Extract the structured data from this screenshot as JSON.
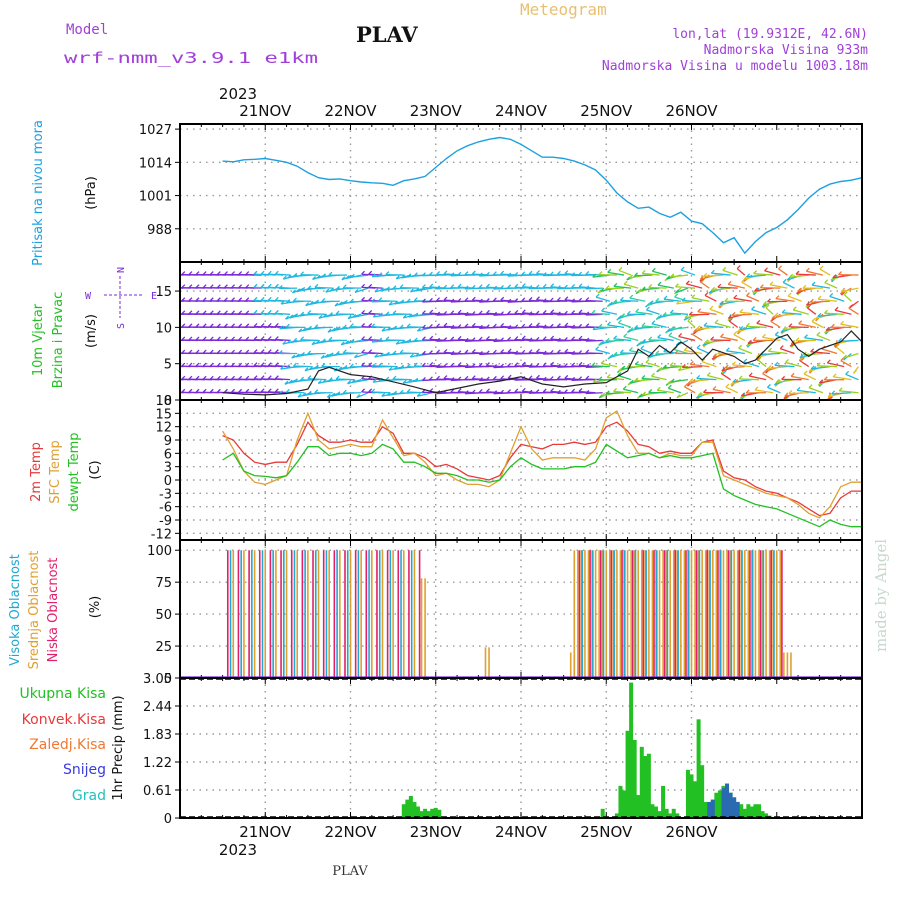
{
  "header": {
    "model_label": "Model",
    "model_name": "wrf-nmm_v3.9.1 e1km",
    "station": "PLAV",
    "meteogram_label": "Meteogram",
    "location_line": "lon,lat (19.9312E, 42.6N)",
    "elevation_line": "Nadmorska Visina 933m",
    "model_elevation_line": "Nadmorska Visina u modelu 1003.18m",
    "year": "2023",
    "footer_station": "PLAV",
    "watermark": "made by Angel"
  },
  "colors": {
    "pressure": "#1ea0e0",
    "temp2m": "#e83a3a",
    "sfc_temp": "#e0a030",
    "dewpt": "#22c022",
    "high_cloud": "#22a8d0",
    "mid_cloud": "#e0a030",
    "low_cloud": "#e0206a",
    "total_precip": "#22c022",
    "conv_precip": "#e83a3a",
    "frozen_precip": "#f07830",
    "snow": "#3a3ae0",
    "hail": "#20c0c0",
    "wind_purple": "#7a2ad8",
    "wind_cyan": "#20b8e0"
  },
  "chart_data": [
    {
      "panel": "pressure",
      "type": "line",
      "ylabel_main": "Pritisak na nivou mora",
      "ylabel_unit": "(hPa)",
      "ylim": [
        975,
        1029
      ],
      "yticks": [
        "1027",
        "1014",
        "1001",
        "988"
      ],
      "ytick_values": [
        1027,
        1014,
        1001,
        988
      ],
      "x_days": [
        "21NOV",
        "22NOV",
        "23NOV",
        "24NOV",
        "25NOV",
        "26NOV"
      ],
      "grid": true,
      "series": [
        {
          "x": [
            0,
            3,
            6,
            9,
            12,
            15,
            18,
            21,
            24,
            27,
            30,
            33,
            36,
            39,
            42,
            45,
            48,
            51,
            54,
            57,
            60,
            63,
            66,
            69,
            72,
            75,
            78,
            81,
            84,
            87,
            90,
            93,
            96,
            99,
            102,
            105,
            108,
            111,
            114,
            117,
            120,
            123,
            126,
            129,
            132,
            135,
            138,
            141,
            144,
            147,
            150,
            153,
            156,
            159,
            162,
            165,
            168,
            171,
            174,
            177,
            180
          ],
          "values": [
            1014.5,
            1014.2,
            1015,
            1015.2,
            1015.5,
            1014.8,
            1014,
            1012.5,
            1010,
            1008,
            1007.3,
            1007.5,
            1006.8,
            1006.3,
            1006,
            1005.8,
            1005,
            1006.8,
            1007.5,
            1008.5,
            1012,
            1015.5,
            1018.5,
            1020.5,
            1022,
            1023,
            1023.7,
            1023,
            1021,
            1018.5,
            1016,
            1016,
            1015.5,
            1014.5,
            1013,
            1011,
            1007,
            1002,
            998.5,
            996,
            996.5,
            994,
            992.5,
            994.5,
            991,
            990,
            986.5,
            982.5,
            984.5,
            978.5,
            983,
            986.5,
            988.5,
            991.5,
            995.5,
            1000,
            1003.5,
            1005.5,
            1006.5,
            1007,
            1008
          ]
        }
      ]
    },
    {
      "panel": "wind",
      "type": "line",
      "ylabel_main": "10m Vjetar",
      "ylabel_sub": "Brzina i Pravac",
      "ylabel_unit": "(m/s)",
      "compass_n": "N",
      "compass_e": "E",
      "compass_w": "W",
      "compass_s": "S",
      "ylim": [
        0,
        19
      ],
      "yticks": [
        "15",
        "10",
        "5",
        "0"
      ],
      "ytick_values": [
        15,
        10,
        5,
        0
      ],
      "grid": true,
      "series": [
        {
          "name": "speed",
          "x": [
            0,
            6,
            12,
            18,
            24,
            27,
            30,
            36,
            42,
            48,
            54,
            60,
            66,
            72,
            78,
            84,
            90,
            96,
            102,
            108,
            114,
            117,
            120,
            123,
            126,
            129,
            132,
            135,
            138,
            141,
            144,
            147,
            150,
            153,
            156,
            159,
            162,
            165,
            168,
            171,
            174,
            177,
            180
          ],
          "values": [
            1,
            0.8,
            0.7,
            0.9,
            1.5,
            4,
            4.5,
            3.5,
            3.2,
            2.5,
            1.8,
            1,
            1.6,
            2.2,
            2.6,
            3.2,
            2.2,
            1.8,
            2.2,
            2.4,
            4,
            7,
            6,
            7.5,
            6.5,
            8,
            7,
            5.5,
            7,
            6.5,
            6,
            5,
            5.5,
            7,
            8.5,
            9,
            7,
            6,
            7,
            7.5,
            8,
            9.5,
            8
          ]
        }
      ]
    },
    {
      "panel": "temperature",
      "type": "line",
      "ylabel_lines": [
        "2m Temp",
        "SFC Temp",
        "dewpt Temp"
      ],
      "ylabel_unit": "(C)",
      "ylim": [
        -13.5,
        18
      ],
      "yticks": [
        "18",
        "15",
        "12",
        "9",
        "6",
        "3",
        "0",
        "-3",
        "-6",
        "-9",
        "-12"
      ],
      "ytick_values": [
        18,
        15,
        12,
        9,
        6,
        3,
        0,
        -3,
        -6,
        -9,
        -12
      ],
      "grid": true,
      "series": [
        {
          "name": "2m Temp",
          "x": [
            0,
            3,
            6,
            9,
            12,
            15,
            18,
            21,
            24,
            27,
            30,
            33,
            36,
            39,
            42,
            45,
            48,
            51,
            54,
            57,
            60,
            63,
            66,
            69,
            72,
            75,
            78,
            81,
            84,
            87,
            90,
            93,
            96,
            99,
            102,
            105,
            108,
            111,
            114,
            117,
            120,
            123,
            126,
            129,
            132,
            135,
            138,
            141,
            144,
            147,
            150,
            153,
            156,
            159,
            162,
            165,
            168,
            171,
            174,
            177,
            180
          ],
          "values": [
            10,
            9,
            6,
            4,
            3.5,
            4,
            4,
            8,
            13,
            10,
            8.5,
            8.5,
            9,
            8.5,
            8.5,
            12,
            10.5,
            6,
            6,
            5,
            3,
            3.5,
            2.5,
            1,
            0.5,
            0,
            1,
            5,
            8,
            7.5,
            7,
            8,
            8,
            8.5,
            8,
            8.5,
            12,
            13,
            11,
            8,
            7.5,
            6,
            6.5,
            6,
            6,
            8.5,
            9,
            2,
            0.5,
            0,
            -1.5,
            -2.5,
            -3,
            -4,
            -5,
            -6.5,
            -8,
            -7.5,
            -4,
            -2.5,
            -2.5
          ]
        },
        {
          "name": "SFC Temp",
          "x": [
            0,
            3,
            6,
            9,
            12,
            15,
            18,
            21,
            24,
            27,
            30,
            33,
            36,
            39,
            42,
            45,
            48,
            51,
            54,
            57,
            60,
            63,
            66,
            69,
            72,
            75,
            78,
            81,
            84,
            87,
            90,
            93,
            96,
            99,
            102,
            105,
            108,
            111,
            114,
            117,
            120,
            123,
            126,
            129,
            132,
            135,
            138,
            141,
            144,
            147,
            150,
            153,
            156,
            159,
            162,
            165,
            168,
            171,
            174,
            177,
            180
          ],
          "values": [
            11,
            7,
            2,
            -0.5,
            -1,
            0,
            1,
            9,
            15,
            9,
            7,
            7.5,
            8,
            7.5,
            7.5,
            13.5,
            9.5,
            5.5,
            6,
            4,
            1,
            1.5,
            0,
            -1,
            -1,
            -1.5,
            0,
            6,
            12,
            7,
            4.5,
            5,
            5,
            5,
            4.5,
            7,
            14,
            15.5,
            10,
            6,
            6,
            5,
            6,
            5.5,
            5.5,
            8.5,
            8.5,
            1,
            0,
            -1,
            -2,
            -3,
            -3.5,
            -4,
            -5.5,
            -7.5,
            -8.5,
            -6,
            -1.5,
            -0.5,
            -0.5
          ]
        },
        {
          "name": "dewpt Temp",
          "x": [
            0,
            3,
            6,
            9,
            12,
            15,
            18,
            21,
            24,
            27,
            30,
            33,
            36,
            39,
            42,
            45,
            48,
            51,
            54,
            57,
            60,
            63,
            66,
            69,
            72,
            75,
            78,
            81,
            84,
            87,
            90,
            93,
            96,
            99,
            102,
            105,
            108,
            111,
            114,
            117,
            120,
            123,
            126,
            129,
            132,
            135,
            138,
            141,
            144,
            147,
            150,
            153,
            156,
            159,
            162,
            165,
            168,
            171,
            174,
            177,
            180
          ],
          "values": [
            4.5,
            6,
            2,
            1,
            0.8,
            0.5,
            1,
            4,
            7.5,
            7.5,
            5.5,
            6,
            6,
            5.5,
            6,
            8,
            7,
            4,
            4,
            3,
            1.5,
            1.5,
            1,
            0,
            0,
            -0.5,
            0,
            3,
            5,
            3.5,
            2.5,
            2.5,
            2.5,
            3,
            3,
            4,
            8,
            6.5,
            5,
            5.5,
            6,
            5,
            5.5,
            5,
            5,
            5.5,
            6,
            -2,
            -3.5,
            -4.5,
            -5.5,
            -6,
            -6.5,
            -7.5,
            -8.5,
            -9.5,
            -10.5,
            -9,
            -10,
            -10.5,
            -10.5
          ]
        }
      ]
    },
    {
      "panel": "cloud",
      "type": "bar",
      "ylabel_lines": [
        "Visoka Oblacnost",
        "Srednja Oblacnost",
        "Niska Oblacnost"
      ],
      "ylabel_unit": "(%)",
      "ylim": [
        0,
        108
      ],
      "yticks": [
        "100",
        "75",
        "50",
        "25",
        "0"
      ],
      "ytick_values": [
        100,
        75,
        50,
        25,
        0
      ],
      "grid": true,
      "segments": [
        {
          "name": "Visoka Oblacnost",
          "from": 1,
          "to": 55,
          "value": 100
        },
        {
          "name": "Srednja Oblacnost",
          "from": 1,
          "to": 55,
          "value": 100
        },
        {
          "name": "Niska Oblacnost",
          "from": 1,
          "to": 55,
          "value": 100
        },
        {
          "name": "Srednja Oblacnost",
          "from": 56,
          "to": 57,
          "value": 78
        },
        {
          "name": "Srednja Oblacnost",
          "from": 99,
          "to": 157,
          "value": 100
        },
        {
          "name": "Visoka Oblacnost",
          "from": 99,
          "to": 157,
          "value": 100
        },
        {
          "name": "Niska Oblacnost",
          "from": 99,
          "to": 157,
          "value": 100
        },
        {
          "name": "Srednja Oblacnost",
          "from": 98,
          "to": 99,
          "value": 20
        },
        {
          "name": "Srednja Oblacnost",
          "from": 158,
          "to": 160,
          "value": 20
        },
        {
          "name": "Srednja Oblacnost",
          "from": 74,
          "to": 75,
          "value": 24
        }
      ]
    },
    {
      "panel": "precip",
      "type": "bar",
      "ylabel_lines": [
        "Ukupna Kisa",
        "Konvek.Kisa",
        "Zaledj.Kisa",
        "Snijeg",
        "Grad"
      ],
      "ylabel_unit": "1hr Precip (mm)",
      "ylim": [
        0,
        3.05
      ],
      "yticks": [
        "3.05",
        "2.44",
        "1.83",
        "1.22",
        "0.61",
        "0"
      ],
      "ytick_values": [
        3.05,
        2.44,
        1.83,
        1.22,
        0.61,
        0
      ],
      "grid": true,
      "x": [
        51,
        52,
        53,
        54,
        55,
        56,
        57,
        58,
        59,
        60,
        61,
        107,
        111,
        112,
        113,
        114,
        115,
        116,
        117,
        118,
        119,
        120,
        121,
        122,
        123,
        124,
        125,
        126,
        127,
        128,
        131,
        132,
        133,
        134,
        135,
        136,
        137,
        138,
        139,
        140,
        141,
        142,
        143,
        144,
        145,
        146,
        147,
        148,
        149,
        150,
        151,
        152,
        153,
        154
      ],
      "values": [
        0.3,
        0.4,
        0.48,
        0.35,
        0.25,
        0.15,
        0.2,
        0.15,
        0.2,
        0.22,
        0.18,
        0.2,
        0.1,
        0.7,
        0.6,
        1.9,
        2.95,
        1.7,
        0.5,
        1.55,
        1.35,
        1.4,
        0.3,
        0.25,
        0.15,
        0.7,
        0.2,
        0.1,
        0.2,
        0.1,
        1.05,
        0.95,
        0.8,
        2.15,
        1.15,
        0.35,
        0.3,
        0.4,
        0.55,
        0.6,
        0.7,
        0.75,
        0.55,
        0.45,
        0.35,
        0.3,
        0.2,
        0.3,
        0.25,
        0.3,
        0.3,
        0.15,
        0.1,
        0.05
      ],
      "snow_x": [
        137,
        138,
        141,
        142,
        143,
        144,
        145
      ],
      "snow_values": [
        0.35,
        0.4,
        0.65,
        0.75,
        0.55,
        0.45,
        0.35
      ]
    }
  ],
  "legend": {
    "precip_labels": [
      "Ukupna Kisa",
      "Konvek.Kisa",
      "Zaledj.Kisa",
      "Snijeg",
      "Grad"
    ]
  }
}
